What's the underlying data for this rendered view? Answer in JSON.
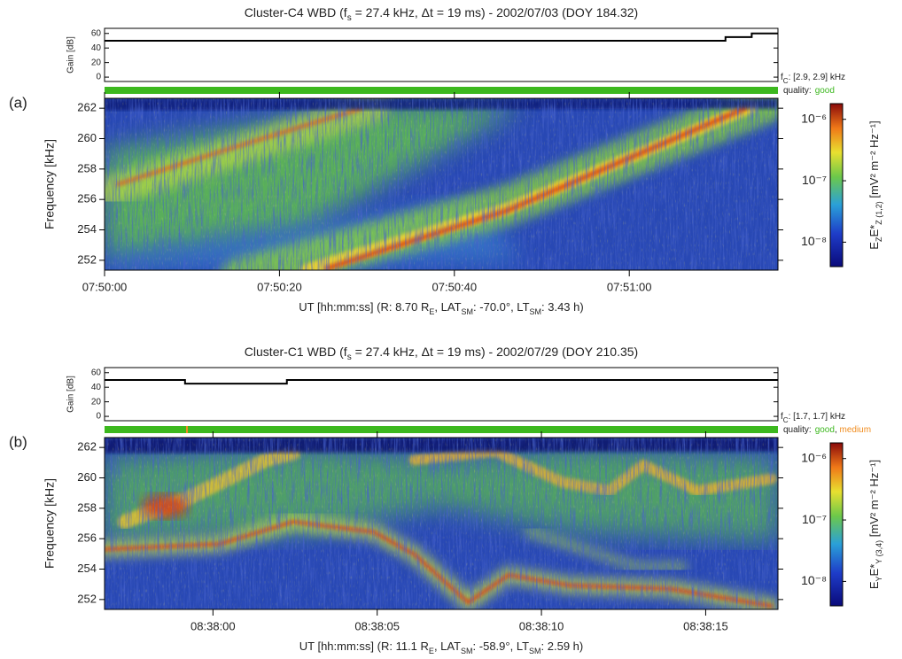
{
  "chart_data": [
    {
      "type": "line",
      "title": [
        "Cluster-C4 WBD (f",
        "s",
        " = 27.4 kHz, Δt = 19 ms) - 2002/07/03 (DOY 184.32)"
      ],
      "y_label": "Gain [dB]",
      "annotation": [
        "f",
        "C",
        ": [2.9, 2.9] kHz"
      ],
      "x": [
        0,
        71,
        71,
        74,
        74,
        77
      ],
      "values": [
        50,
        50,
        55,
        55,
        60,
        60
      ],
      "color": "#000000",
      "xlim": [
        0,
        77
      ],
      "ylim": [
        -6,
        67
      ],
      "yticks": [
        0,
        20,
        40,
        60
      ]
    },
    {
      "type": "spectrogram",
      "panel_label": "(a)",
      "quality_label": "quality:",
      "quality": [
        {
          "name": "good",
          "color": "#3cb81e"
        }
      ],
      "y_label": "Frequency [kHz]",
      "x_label": [
        "UT [hh:mm:ss]  (R: 8.70 R",
        "E",
        ", LAT",
        "SM",
        ": -70.0°, LT",
        "SM",
        ": 3.43 h)"
      ],
      "xlim": [
        0,
        77
      ],
      "xticks": [
        {
          "value": 0,
          "label": "07:50:00"
        },
        {
          "value": 20,
          "label": "07:50:20"
        },
        {
          "value": 40,
          "label": "07:50:40"
        },
        {
          "value": 60,
          "label": "07:51:00"
        }
      ],
      "ylim": [
        251.35,
        262.65
      ],
      "yticks": [
        252,
        254,
        256,
        258,
        260,
        262
      ],
      "colorbar": {
        "label": [
          "E",
          "Z",
          "E*",
          "Z (1,2)",
          "  [mV² m⁻² Hz⁻¹]"
        ],
        "log": true,
        "lim": [
          4e-09,
          1.8e-06
        ],
        "ticks": [
          {
            "value": 1e-08,
            "label": "10⁻⁸"
          },
          {
            "value": 1e-07,
            "label": "10⁻⁷"
          },
          {
            "value": 1e-06,
            "label": "10⁻⁶"
          }
        ]
      }
    },
    {
      "type": "line",
      "title": [
        "Cluster-C1 WBD (f",
        "s",
        " = 27.4 kHz, Δt = 19 ms) - 2002/07/29 (DOY 210.35)"
      ],
      "y_label": "Gain [dB]",
      "annotation": [
        "f",
        "C",
        ": [1.7, 1.7] kHz"
      ],
      "x": [
        -3.3,
        -0.85,
        -0.85,
        2.25,
        2.25,
        17.2
      ],
      "values": [
        50,
        50,
        45,
        45,
        50,
        50
      ],
      "color": "#000000",
      "xlim": [
        -3.3,
        17.2
      ],
      "ylim": [
        -6,
        67
      ],
      "yticks": [
        0,
        20,
        40,
        60
      ]
    },
    {
      "type": "spectrogram",
      "panel_label": "(b)",
      "quality_label": "quality:",
      "quality": [
        {
          "name": "good",
          "color": "#3cb81e"
        },
        {
          "name": "medium",
          "color": "#f08c1e"
        }
      ],
      "quality_separator": ", ",
      "y_label": "Frequency [kHz]",
      "x_label": [
        "UT [hh:mm:ss]  (R: 11.1 R",
        "E",
        ", LAT",
        "SM",
        ": -58.9°, LT",
        "SM",
        ": 2.59 h)"
      ],
      "xlim": [
        -3.3,
        17.2
      ],
      "xticks": [
        {
          "value": 0,
          "label": "08:38:00"
        },
        {
          "value": 5,
          "label": "08:38:05"
        },
        {
          "value": 10,
          "label": "08:38:10"
        },
        {
          "value": 15,
          "label": "08:38:15"
        }
      ],
      "ylim": [
        251.35,
        262.65
      ],
      "yticks": [
        252,
        254,
        256,
        258,
        260,
        262
      ],
      "colorbar": {
        "label": [
          "E",
          "Y",
          "E*",
          "Y (3,4)",
          "  [mV² m⁻² Hz⁻¹]"
        ],
        "log": true,
        "lim": [
          4e-09,
          1.8e-06
        ],
        "ticks": [
          {
            "value": 1e-08,
            "label": "10⁻⁸"
          },
          {
            "value": 1e-07,
            "label": "10⁻⁷"
          },
          {
            "value": 1e-06,
            "label": "10⁻⁶"
          }
        ]
      }
    }
  ]
}
